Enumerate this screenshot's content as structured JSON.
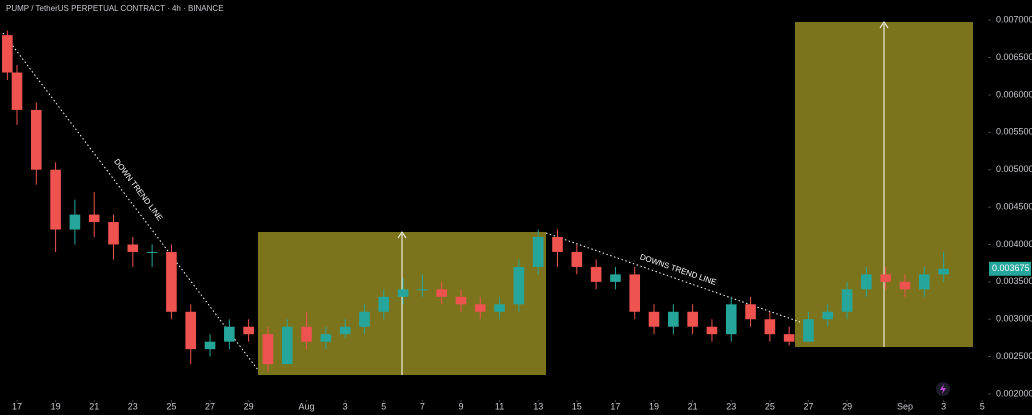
{
  "chart_data": {
    "type": "candlestick",
    "title": "PUMP / TetherUS PERPETUAL CONTRACT · 4h · BINANCE",
    "annotations": [
      "DOWN TREND LINE",
      "DOWNS TREND LINE"
    ],
    "last_price": 0.003675,
    "up_color": "#26a69a",
    "down_color": "#ef5350",
    "x": [
      -0.5,
      0,
      1,
      2,
      3,
      4,
      5,
      6,
      7,
      8,
      9,
      10,
      11,
      12,
      13,
      14,
      15,
      16,
      17,
      18,
      19,
      20,
      21,
      22,
      23,
      24,
      25,
      26,
      27,
      28,
      29,
      30,
      31,
      32,
      33,
      34,
      35,
      36,
      37,
      38,
      39,
      40,
      41,
      42,
      43,
      44,
      45,
      46,
      47,
      48
    ],
    "open": [
      0.0068,
      0.0063,
      0.0058,
      0.005,
      0.0042,
      0.0044,
      0.0043,
      0.004,
      0.0039,
      0.0039,
      0.0031,
      0.0026,
      0.0027,
      0.0029,
      0.0028,
      0.0024,
      0.0029,
      0.0027,
      0.0028,
      0.0029,
      0.0031,
      0.0033,
      0.0034,
      0.0034,
      0.0033,
      0.0032,
      0.0031,
      0.0032,
      0.0037,
      0.0041,
      0.0039,
      0.0037,
      0.0035,
      0.0036,
      0.0031,
      0.0029,
      0.0031,
      0.0029,
      0.0028,
      0.0032,
      0.003,
      0.0028,
      0.0027,
      0.003,
      0.0031,
      0.0034,
      0.0036,
      0.0035,
      0.0034,
      0.0036
    ],
    "high": [
      0.00686,
      0.0064,
      0.0059,
      0.0051,
      0.0046,
      0.0047,
      0.0044,
      0.0041,
      0.004,
      0.004,
      0.0032,
      0.0028,
      0.003,
      0.003,
      0.0029,
      0.003,
      0.0031,
      0.0029,
      0.003,
      0.0032,
      0.0034,
      0.00355,
      0.0036,
      0.0035,
      0.0034,
      0.0033,
      0.0033,
      0.0038,
      0.0042,
      0.0042,
      0.004,
      0.0038,
      0.0037,
      0.0037,
      0.0032,
      0.0032,
      0.0032,
      0.003,
      0.0033,
      0.0033,
      0.0031,
      0.0029,
      0.0031,
      0.0032,
      0.0035,
      0.0037,
      0.0037,
      0.0036,
      0.0037,
      0.0039
    ],
    "low": [
      0.0062,
      0.0056,
      0.0048,
      0.0039,
      0.004,
      0.0041,
      0.0038,
      0.0037,
      0.0037,
      0.003,
      0.0024,
      0.0025,
      0.0026,
      0.0027,
      0.0023,
      0.0024,
      0.0026,
      0.0026,
      0.00275,
      0.0028,
      0.003,
      0.0032,
      0.0033,
      0.0032,
      0.0031,
      0.003,
      0.003,
      0.0031,
      0.0036,
      0.0037,
      0.0036,
      0.0034,
      0.0034,
      0.003,
      0.0028,
      0.0028,
      0.0028,
      0.0027,
      0.0027,
      0.0029,
      0.0027,
      0.00265,
      0.0027,
      0.0029,
      0.003,
      0.0033,
      0.0034,
      0.0033,
      0.0033,
      0.0035
    ],
    "close": [
      0.0063,
      0.0058,
      0.005,
      0.0042,
      0.0044,
      0.0043,
      0.004,
      0.0039,
      0.0039,
      0.0031,
      0.0026,
      0.0027,
      0.0029,
      0.0028,
      0.0024,
      0.0029,
      0.0027,
      0.0028,
      0.0029,
      0.0031,
      0.0033,
      0.0034,
      0.0034,
      0.0033,
      0.0032,
      0.0031,
      0.0032,
      0.0037,
      0.0041,
      0.0039,
      0.0037,
      0.0035,
      0.0036,
      0.0031,
      0.0029,
      0.0031,
      0.0029,
      0.0028,
      0.0032,
      0.003,
      0.0028,
      0.0027,
      0.003,
      0.0031,
      0.0034,
      0.0036,
      0.0035,
      0.0034,
      0.0036,
      0.003675
    ],
    "xlim": [
      -0.88,
      50.3
    ],
    "ylim": [
      0.00192,
      0.00727
    ],
    "xticks": [
      {
        "value": 0,
        "label": "17"
      },
      {
        "value": 2,
        "label": "19"
      },
      {
        "value": 4,
        "label": "21"
      },
      {
        "value": 6,
        "label": "23"
      },
      {
        "value": 8,
        "label": "25"
      },
      {
        "value": 10,
        "label": "27"
      },
      {
        "value": 12,
        "label": "29"
      },
      {
        "value": 15,
        "label": "Aug"
      },
      {
        "value": 17,
        "label": "3"
      },
      {
        "value": 19,
        "label": "5"
      },
      {
        "value": 21,
        "label": "7"
      },
      {
        "value": 23,
        "label": "9"
      },
      {
        "value": 25,
        "label": "11"
      },
      {
        "value": 27,
        "label": "13"
      },
      {
        "value": 29,
        "label": "15"
      },
      {
        "value": 31,
        "label": "17"
      },
      {
        "value": 33,
        "label": "19"
      },
      {
        "value": 35,
        "label": "21"
      },
      {
        "value": 37,
        "label": "23"
      },
      {
        "value": 39,
        "label": "25"
      },
      {
        "value": 41,
        "label": "27"
      },
      {
        "value": 43,
        "label": "29"
      },
      {
        "value": 46,
        "label": "Sep"
      },
      {
        "value": 48,
        "label": "3"
      },
      {
        "value": 50,
        "label": "5"
      }
    ],
    "yticks": [
      {
        "value": 0.007,
        "label": "0.007000"
      },
      {
        "value": 0.0065,
        "label": "0.006500"
      },
      {
        "value": 0.006,
        "label": "0.006000"
      },
      {
        "value": 0.0055,
        "label": "0.005500"
      },
      {
        "value": 0.005,
        "label": "0.005000"
      },
      {
        "value": 0.0045,
        "label": "0.004500"
      },
      {
        "value": 0.004,
        "label": "0.004000"
      },
      {
        "value": 0.0035,
        "label": "0.003500"
      },
      {
        "value": 0.003,
        "label": "0.003000"
      },
      {
        "value": 0.0025,
        "label": "0.002500"
      },
      {
        "value": 0.002,
        "label": "0.002000"
      }
    ]
  }
}
